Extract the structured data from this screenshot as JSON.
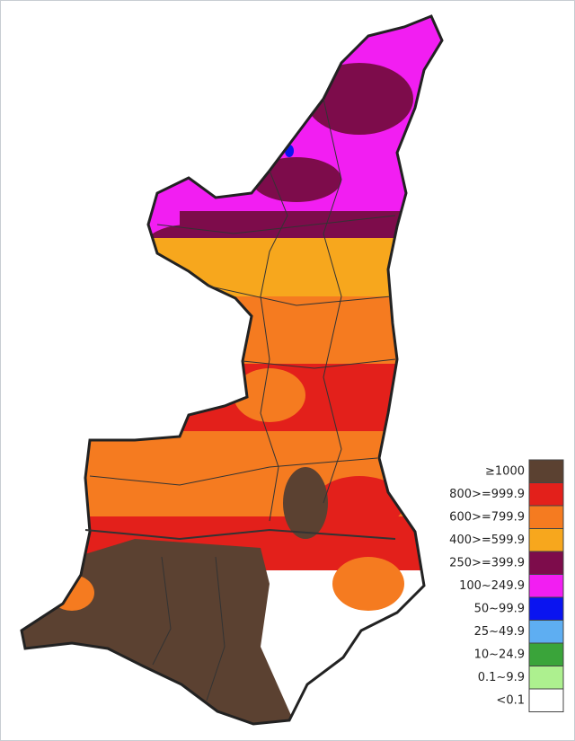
{
  "legend": {
    "items": [
      {
        "label": "≥1000",
        "color": "#5b4131"
      },
      {
        "label": "800>=999.9",
        "color": "#e3201b"
      },
      {
        "label": "600>=799.9",
        "color": "#f57b20"
      },
      {
        "label": "400>=599.9",
        "color": "#f7a71d"
      },
      {
        "label": "250>=399.9",
        "color": "#7d0c4b"
      },
      {
        "label": "100~249.9",
        "color": "#f21ef2"
      },
      {
        "label": "50~99.9",
        "color": "#0a14f0"
      },
      {
        "label": "25~49.9",
        "color": "#5eaef2"
      },
      {
        "label": "10~24.9",
        "color": "#3aa43a"
      },
      {
        "label": "0.1~9.9",
        "color": "#adf08f"
      },
      {
        "label": "<0.1",
        "color": "#ffffff"
      }
    ]
  }
}
